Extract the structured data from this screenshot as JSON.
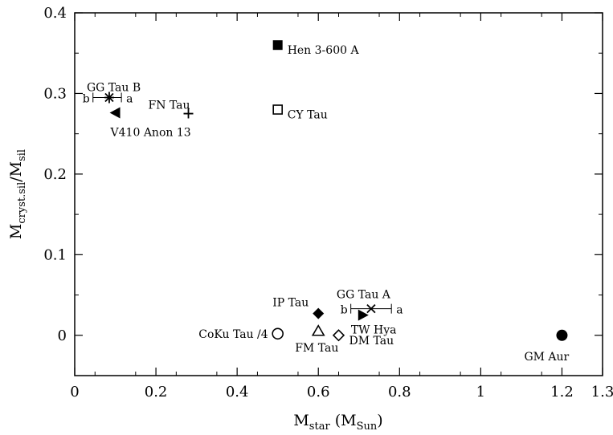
{
  "chart_data": {
    "type": "scatter",
    "title": "",
    "xlabel": {
      "main": "M",
      "sub": "star",
      "rest": " (M",
      "sub2": "Sun",
      "close": ")"
    },
    "ylabel": {
      "main": "M",
      "sub": "cryst.sil",
      "rest": "/M",
      "sub2": "sil"
    },
    "xlim": [
      0,
      1.3
    ],
    "ylim": [
      -0.05,
      0.4
    ],
    "xticks": [
      0,
      0.2,
      0.4,
      0.6,
      0.8,
      1,
      1.2,
      1.3
    ],
    "xtick_labels": [
      "0",
      "0.2",
      "0.4",
      "0.6",
      "0.8",
      "1",
      "1.2",
      "1.3"
    ],
    "yticks": [
      0,
      0.1,
      0.2,
      0.3,
      0.4
    ],
    "ytick_labels": [
      "0",
      "0.1",
      "0.2",
      "0.3",
      "0.4"
    ],
    "grid": false,
    "legend": "none",
    "points": [
      {
        "label": "Hen 3-600 A",
        "x": 0.5,
        "y": 0.36,
        "marker": "square-filled"
      },
      {
        "label": "CY Tau",
        "x": 0.5,
        "y": 0.28,
        "marker": "square-open"
      },
      {
        "label": "GG Tau B",
        "x": 0.085,
        "y": 0.295,
        "marker": "asterisk",
        "xerr": [
          0.045,
          0.115
        ],
        "err_ends": [
          "b",
          "a"
        ]
      },
      {
        "label": "V410 Anon 13",
        "x": 0.1,
        "y": 0.276,
        "marker": "triangle-left-filled"
      },
      {
        "label": "FN Tau",
        "x": 0.28,
        "y": 0.275,
        "marker": "plus"
      },
      {
        "label": "IP Tau",
        "x": 0.6,
        "y": 0.027,
        "marker": "diamond-filled"
      },
      {
        "label": "GG Tau A",
        "x": 0.73,
        "y": 0.033,
        "marker": "cross",
        "xerr": [
          0.68,
          0.78
        ],
        "err_ends": [
          "b",
          "a"
        ]
      },
      {
        "label": "TW Hya",
        "x": 0.71,
        "y": 0.025,
        "marker": "triangle-right-filled"
      },
      {
        "label": "CoKu Tau /4",
        "x": 0.5,
        "y": 0.002,
        "marker": "circle-open"
      },
      {
        "label": "FM Tau",
        "x": 0.6,
        "y": 0.005,
        "marker": "triangle-up-open"
      },
      {
        "label": "DM Tau",
        "x": 0.65,
        "y": 0.0,
        "marker": "diamond-open"
      },
      {
        "label": "GM Aur",
        "x": 1.2,
        "y": 0.0,
        "marker": "circle-filled"
      }
    ]
  }
}
